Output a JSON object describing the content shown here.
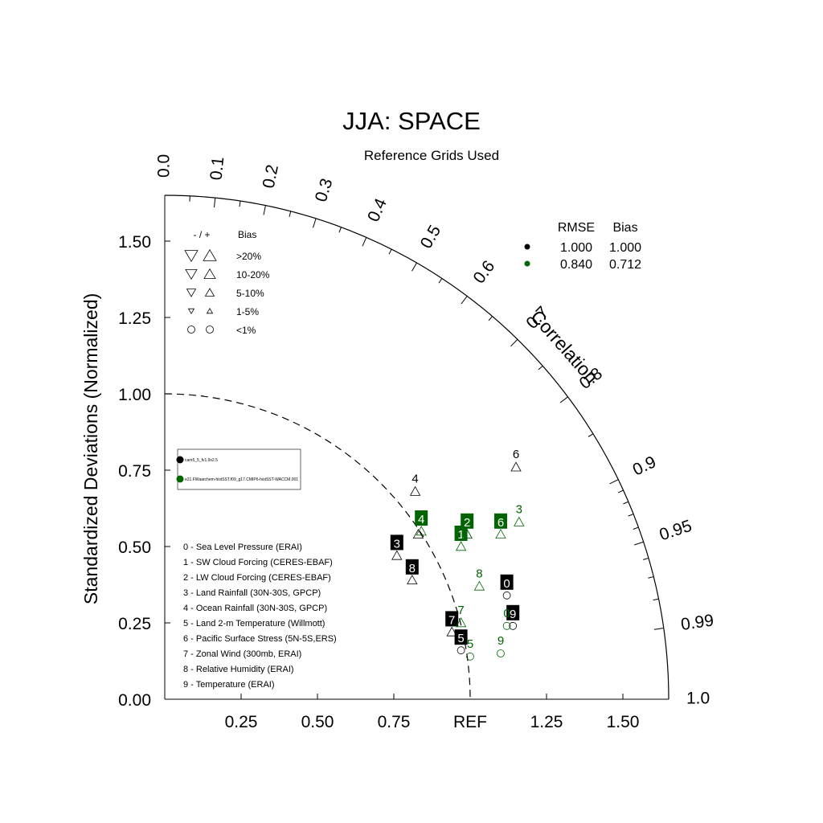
{
  "chart_data": {
    "type": "scatter",
    "title": "JJA: SPACE",
    "subtitle": "Reference Grids Used",
    "ylabel": "Standardized Deviations (Normalized)",
    "radial_label": "Correlation",
    "ref_label": "REF",
    "ylim": [
      0,
      1.65
    ],
    "xlim": [
      0,
      1.65
    ],
    "y_ticks": [
      "0.00",
      "0.25",
      "0.50",
      "0.75",
      "1.00",
      "1.25",
      "1.50"
    ],
    "x_ticks": [
      "0.25",
      "0.50",
      "0.75",
      "1.25",
      "1.50"
    ],
    "corr_ticks": [
      "0.0",
      "0.1",
      "0.2",
      "0.3",
      "0.4",
      "0.5",
      "0.6",
      "0.7",
      "0.8",
      "0.9",
      "0.95",
      "0.99",
      "1.0"
    ],
    "bias_legend": {
      "header_sign": "- / +",
      "header_bias": "Bias",
      "rows": [
        "&gt;20%",
        "10-20%",
        "5-10%",
        "1-5%",
        "&lt;1%"
      ]
    },
    "stats_table": {
      "headers": [
        "RMSE",
        "Bias"
      ],
      "rows": [
        {
          "color": "#000000",
          "rmse": "1.000",
          "bias": "1.000"
        },
        {
          "color": "#006400",
          "rmse": "0.840",
          "bias": "0.712"
        }
      ]
    },
    "case_legend": [
      {
        "color": "#000000",
        "label": "cam5_5_fv1.9x2.5"
      },
      {
        "color": "#006400",
        "label": "e21.FWaarchem-histSST.f09_g17.CMIP6-histSST-WACCM.001"
      }
    ],
    "variables": [
      "0 - Sea Level Pressure (ERAI)",
      "1 - SW Cloud Forcing (CERES-EBAF)",
      "2 - LW Cloud Forcing (CERES-EBAF)",
      "3 - Land Rainfall (30N-30S, GPCP)",
      "4 - Ocean Rainfall (30N-30S, GPCP)",
      "5 - Land 2-m Temperature (Willmott)",
      "6 - Pacific Surface Stress (5N-5S,ERS)",
      "7 - Zonal Wind (300mb, ERAI)",
      "8 - Relative Humidity (ERAI)",
      "9 - Temperature (ERAI)"
    ],
    "series": [
      {
        "color": "#000000",
        "points": [
          {
            "id": "0",
            "x": 1.12,
            "y": 0.34,
            "marker": "circle",
            "label_style": "box"
          },
          {
            "id": "1",
            "x": 0.99,
            "y": 0.54,
            "marker": "triangle-up",
            "label_style": "text"
          },
          {
            "id": "2",
            "x": 0.83,
            "y": 0.54,
            "marker": "triangle-up",
            "label_style": "text"
          },
          {
            "id": "3",
            "x": 0.76,
            "y": 0.47,
            "marker": "triangle-up",
            "label_style": "box"
          },
          {
            "id": "4",
            "x": 0.82,
            "y": 0.68,
            "marker": "triangle-up",
            "label_style": "text"
          },
          {
            "id": "5",
            "x": 0.97,
            "y": 0.16,
            "marker": "circle",
            "label_style": "box"
          },
          {
            "id": "6",
            "x": 1.15,
            "y": 0.76,
            "marker": "triangle-up",
            "label_style": "text"
          },
          {
            "id": "7",
            "x": 0.94,
            "y": 0.22,
            "marker": "triangle-up",
            "label_style": "box"
          },
          {
            "id": "8",
            "x": 0.81,
            "y": 0.39,
            "marker": "triangle-up",
            "label_style": "box"
          },
          {
            "id": "9",
            "x": 1.14,
            "y": 0.24,
            "marker": "circle",
            "label_style": "box"
          }
        ]
      },
      {
        "color": "#006400",
        "points": [
          {
            "id": "0",
            "x": 1.12,
            "y": 0.24,
            "marker": "circle",
            "label_style": "text"
          },
          {
            "id": "1",
            "x": 0.97,
            "y": 0.5,
            "marker": "triangle-up",
            "label_style": "box"
          },
          {
            "id": "2",
            "x": 0.99,
            "y": 0.54,
            "marker": "triangle-up",
            "label_style": "box"
          },
          {
            "id": "3",
            "x": 1.16,
            "y": 0.58,
            "marker": "triangle-up",
            "label_style": "text"
          },
          {
            "id": "4",
            "x": 0.84,
            "y": 0.55,
            "marker": "triangle-up",
            "label_style": "box"
          },
          {
            "id": "5",
            "x": 1.0,
            "y": 0.14,
            "marker": "circle",
            "label_style": "text"
          },
          {
            "id": "6",
            "x": 1.1,
            "y": 0.54,
            "marker": "triangle-up",
            "label_style": "box"
          },
          {
            "id": "7",
            "x": 0.97,
            "y": 0.25,
            "marker": "triangle-up",
            "label_style": "text"
          },
          {
            "id": "8",
            "x": 1.03,
            "y": 0.37,
            "marker": "triangle-up",
            "label_style": "text"
          },
          {
            "id": "9",
            "x": 1.1,
            "y": 0.15,
            "marker": "circle",
            "label_style": "text"
          }
        ]
      }
    ]
  }
}
